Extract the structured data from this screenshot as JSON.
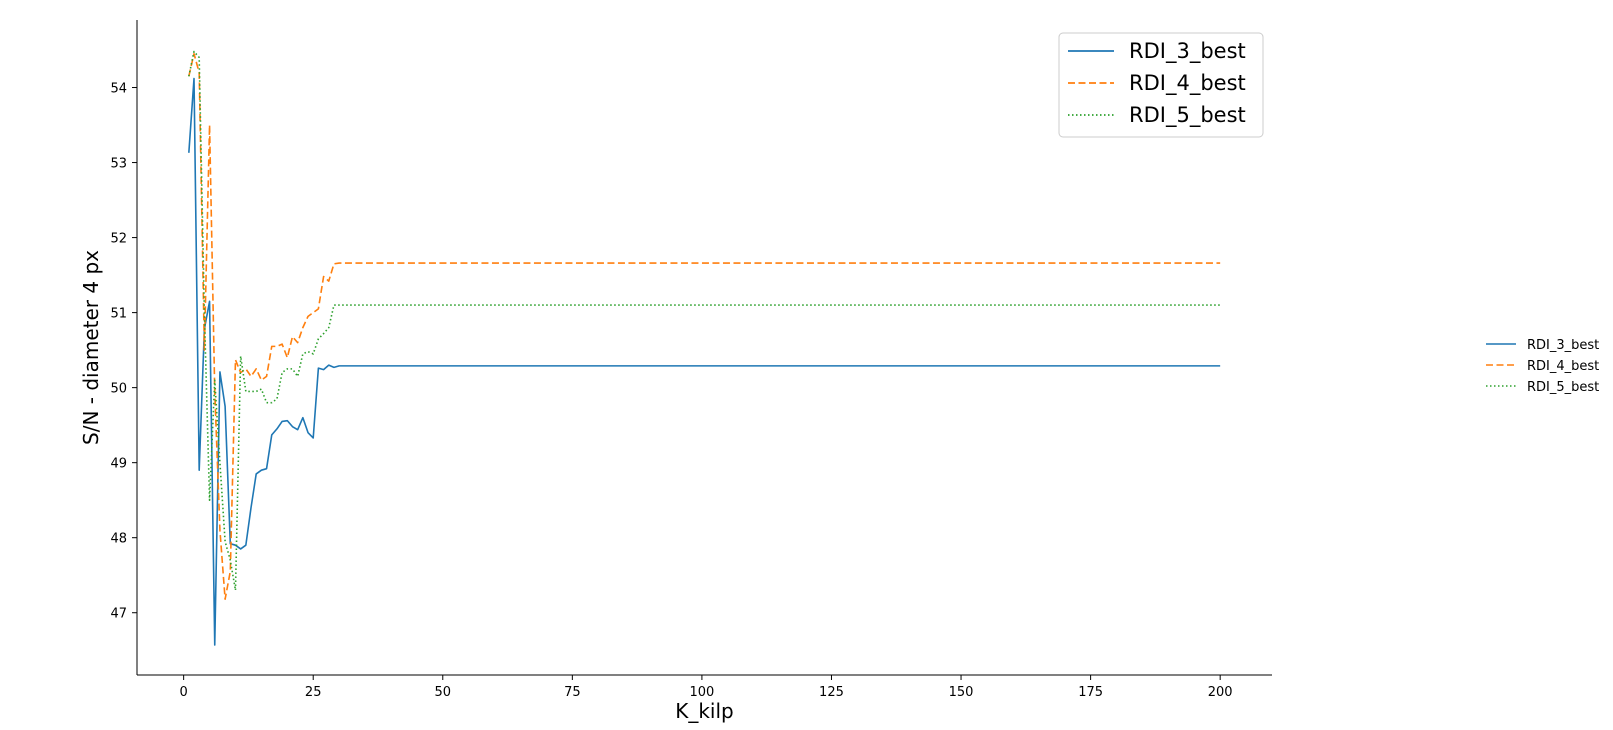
{
  "chart_data": {
    "type": "line",
    "xlabel": "K_kilp",
    "ylabel": "S/N - diameter 4 px",
    "xlim": [
      -9,
      210
    ],
    "ylim": [
      46.17,
      54.9
    ],
    "xticks": [
      0,
      25,
      50,
      75,
      100,
      125,
      150,
      175,
      200
    ],
    "yticks": [
      47,
      48,
      49,
      50,
      51,
      52,
      53,
      54
    ],
    "grid": false,
    "legend": [
      "top-right",
      "outside-right"
    ],
    "series": [
      {
        "name": "RDI_3_best",
        "color": "#1f77b4",
        "dash": "solid",
        "x": [
          1,
          2,
          3,
          4,
          5,
          6,
          7,
          8,
          9,
          10,
          11,
          12,
          13,
          14,
          15,
          16,
          17,
          18,
          19,
          20,
          21,
          22,
          23,
          24,
          25,
          26,
          27,
          28,
          29,
          30,
          200
        ],
        "y": [
          53.13,
          54.12,
          48.9,
          50.78,
          51.15,
          46.57,
          50.21,
          49.75,
          47.92,
          47.9,
          47.85,
          47.9,
          48.4,
          48.85,
          48.9,
          48.92,
          49.37,
          49.45,
          49.55,
          49.56,
          49.48,
          49.44,
          49.6,
          49.4,
          49.33,
          50.26,
          50.24,
          50.3,
          50.27,
          50.29,
          50.29
        ]
      },
      {
        "name": "RDI_4_best",
        "color": "#ff7f0e",
        "dash": "dashed",
        "x": [
          1,
          2,
          3,
          4,
          5,
          6,
          7,
          8,
          9,
          10,
          11,
          12,
          13,
          14,
          15,
          16,
          17,
          18,
          19,
          20,
          21,
          22,
          23,
          24,
          25,
          26,
          27,
          28,
          29,
          30,
          200
        ],
        "y": [
          54.15,
          54.45,
          54.2,
          50.5,
          53.5,
          49.95,
          48.1,
          47.18,
          47.55,
          50.37,
          50.2,
          50.25,
          50.15,
          50.25,
          50.1,
          50.15,
          50.55,
          50.55,
          50.58,
          50.4,
          50.68,
          50.6,
          50.8,
          50.95,
          51.0,
          51.05,
          51.48,
          51.42,
          51.65,
          51.66,
          51.66
        ]
      },
      {
        "name": "RDI_5_best",
        "color": "#2ca02c",
        "dash": "dotted",
        "x": [
          1,
          2,
          3,
          4,
          5,
          6,
          7,
          8,
          9,
          10,
          11,
          12,
          13,
          14,
          15,
          16,
          17,
          18,
          19,
          20,
          21,
          22,
          23,
          24,
          25,
          26,
          27,
          28,
          29,
          30,
          200
        ],
        "y": [
          54.15,
          54.48,
          54.4,
          51.0,
          48.5,
          50.1,
          49.0,
          47.95,
          47.7,
          47.3,
          50.42,
          49.95,
          49.95,
          49.95,
          49.98,
          49.8,
          49.8,
          49.85,
          50.2,
          50.25,
          50.25,
          50.15,
          50.45,
          50.48,
          50.45,
          50.65,
          50.72,
          50.8,
          51.1,
          51.1,
          51.1
        ]
      }
    ]
  }
}
